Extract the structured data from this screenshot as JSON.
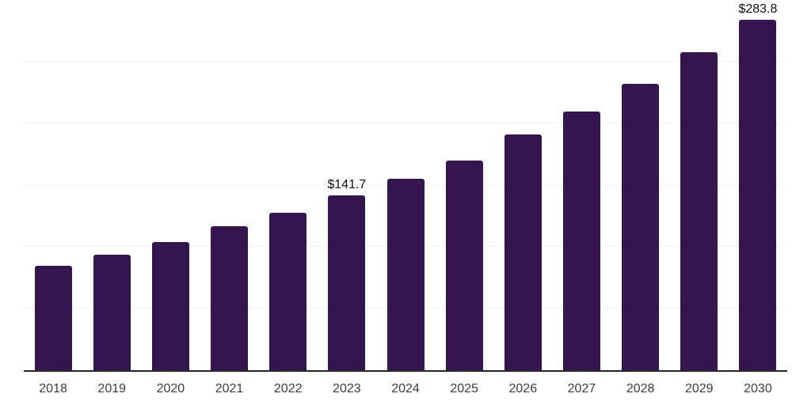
{
  "chart_data": {
    "type": "bar",
    "title": "",
    "xlabel": "",
    "ylabel": "",
    "categories": [
      "2018",
      "2019",
      "2020",
      "2021",
      "2022",
      "2023",
      "2024",
      "2025",
      "2026",
      "2027",
      "2028",
      "2029",
      "2030"
    ],
    "values": [
      84.5,
      93.4,
      103.8,
      116.5,
      127.4,
      141.7,
      155.1,
      169.9,
      190.8,
      209.5,
      232.0,
      257.4,
      283.8
    ],
    "data_labels": [
      {
        "category": "2023",
        "text": "$141.7"
      },
      {
        "category": "2030",
        "text": "$283.8"
      }
    ],
    "unit_prefix": "$",
    "ylim": [
      0,
      300
    ],
    "grid_step": 50,
    "grid": "horizontal-only",
    "y_tick_labels_visible": false,
    "legend": "none"
  },
  "style": {
    "bar_color": "#351550",
    "grid_color": "#f2f2f2",
    "axis_color": "#262626",
    "tick_label_color": "#3d3d3d",
    "data_label_color": "#111111",
    "background": "#ffffff"
  }
}
